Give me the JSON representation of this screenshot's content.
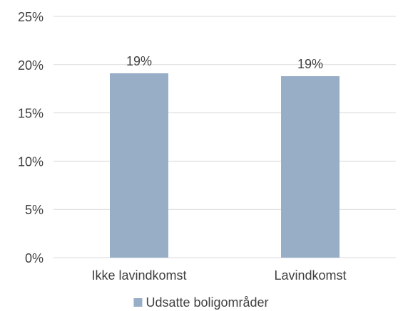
{
  "chart_data": {
    "type": "bar",
    "categories": [
      "Ikke lavindkomst",
      "Lavindkomst"
    ],
    "series": [
      {
        "name": "Udsatte boligområder",
        "values": [
          19.1,
          18.8
        ],
        "data_labels": [
          "19%",
          "19%"
        ]
      }
    ],
    "ylim": [
      0,
      25
    ],
    "yticks": [
      0,
      5,
      10,
      15,
      20,
      25
    ],
    "ytick_labels": [
      "0%",
      "5%",
      "10%",
      "15%",
      "20%",
      "25%"
    ],
    "grid": true,
    "legend_position": "bottom",
    "bar_color": "#97aec6",
    "grid_color": "#d9d9d9",
    "text_color": "#404040"
  }
}
